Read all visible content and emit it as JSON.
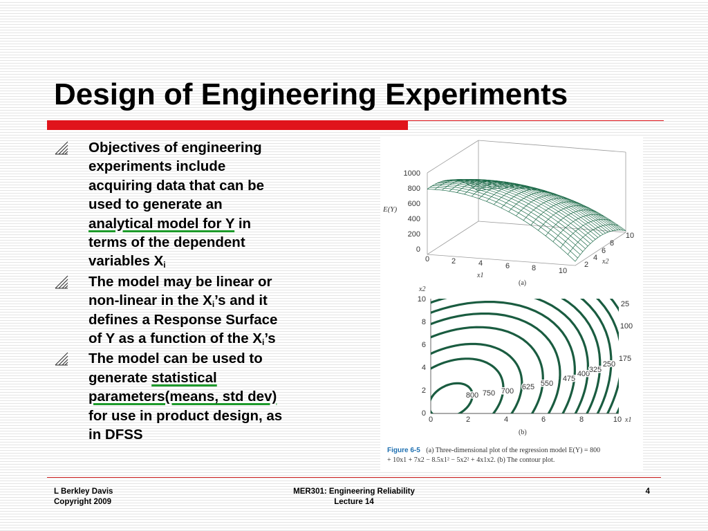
{
  "slide": {
    "title": "Design of Engineering Experiments",
    "bullets": [
      {
        "lines": [
          "Objectives of  engineering",
          "experiments include",
          "acquiring data that can be",
          "used to generate an"
        ],
        "underlined": "analytical model for Y",
        "after_underline": " in",
        "rest_lines": [
          "terms of the dependent"
        ],
        "last_prefix": "variables X",
        "last_sub": "i"
      },
      {
        "line1": "The model may be linear or",
        "line2_prefix": "non-linear in the X",
        "line2_sub": "i",
        "line2_suffix": "’s and  it",
        "line3": "defines a Response Surface",
        "line4_prefix": "of Y as a function of the X",
        "line4_sub": "i",
        "line4_suffix": "’s"
      },
      {
        "line1": "The model can be used to",
        "line2_prefix": "generate ",
        "line2_underlined": "statistical",
        "line3_underlined": "parameters(means, std dev)",
        "line4": "for use in product design, as",
        "line5": "in DFSS"
      }
    ]
  },
  "figure": {
    "surface": {
      "z_label": "E(Y)",
      "z_ticks": [
        "1000",
        "800",
        "600",
        "400",
        "200",
        "0"
      ],
      "x1_ticks": [
        "0",
        "2",
        "4",
        "6",
        "8",
        "10"
      ],
      "x1_label": "x1",
      "x2_ticks": [
        "2",
        "4",
        "6",
        "8",
        "10"
      ],
      "x2_label": "x2",
      "panel_label": "(a)"
    },
    "contour": {
      "y_label": "x2",
      "y_ticks": [
        "10",
        "8",
        "6",
        "4",
        "2",
        "0"
      ],
      "x_ticks": [
        "0",
        "2",
        "4",
        "6",
        "8",
        "10"
      ],
      "x_label": "x1",
      "contour_labels": [
        "800",
        "750",
        "700",
        "625",
        "550",
        "475",
        "400",
        "325",
        "250",
        "175",
        "100",
        "25"
      ],
      "panel_label": "(b)"
    },
    "caption_label": "Figure 6-5",
    "caption_line1": "(a) Three-dimensional plot of the regression model E(Y) = 800",
    "caption_line2": "+ 10x1 + 7x2 − 8.5x1² − 5x2² + 4x1x2. (b) The contour plot."
  },
  "footer": {
    "author": "L Berkley Davis",
    "copyright": "Copyright 2009",
    "course": "MER301: Engineering Reliability",
    "lecture": "Lecture 14",
    "page": "4"
  },
  "colors": {
    "accent_red": "#e0141b",
    "underline_green": "#1d9a2a",
    "plot_green": "#1e6b4a"
  }
}
